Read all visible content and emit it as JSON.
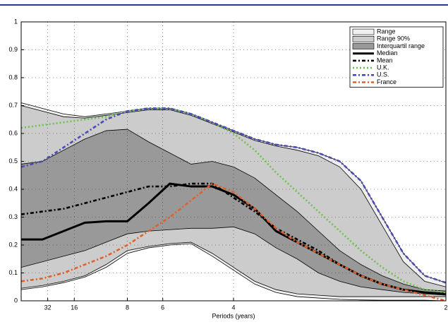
{
  "chart_data": {
    "type": "fan",
    "xlabel": "Periods (years)",
    "x": [
      0,
      0.025,
      0.05,
      0.075,
      0.1,
      0.125,
      0.15,
      0.175,
      0.2,
      0.225,
      0.25,
      0.275,
      0.3,
      0.325,
      0.35,
      0.375,
      0.4,
      0.425,
      0.45,
      0.475,
      0.5
    ],
    "xlim": [
      0,
      0.5
    ],
    "xticks": [
      {
        "value": 0.03125,
        "label": "32"
      },
      {
        "value": 0.0625,
        "label": "16"
      },
      {
        "value": 0.125,
        "label": "8"
      },
      {
        "value": 0.16667,
        "label": "6"
      },
      {
        "value": 0.25,
        "label": "4"
      },
      {
        "value": 0.5,
        "label": "2"
      }
    ],
    "ylim": [
      0,
      1
    ],
    "yticks": [
      0,
      0.1,
      0.2,
      0.3,
      0.4,
      0.5,
      0.6,
      0.7,
      0.8,
      0.9,
      1
    ],
    "grid": true,
    "legend": "upper right",
    "bands": [
      {
        "name": "Range",
        "color": "#efefef",
        "upper": [
          0.71,
          0.69,
          0.67,
          0.66,
          0.67,
          0.68,
          0.69,
          0.69,
          0.67,
          0.64,
          0.61,
          0.58,
          0.56,
          0.55,
          0.53,
          0.5,
          0.43,
          0.3,
          0.17,
          0.09,
          0.065
        ],
        "lower": [
          0.04,
          0.05,
          0.065,
          0.085,
          0.12,
          0.17,
          0.19,
          0.2,
          0.205,
          0.16,
          0.11,
          0.06,
          0.03,
          0.015,
          0.01,
          0.005,
          0.003,
          0.002,
          0.002,
          0.002,
          0
        ]
      },
      {
        "name": "Range 90%",
        "color": "#cccccc",
        "upper": [
          0.7,
          0.68,
          0.66,
          0.655,
          0.665,
          0.675,
          0.685,
          0.685,
          0.665,
          0.635,
          0.605,
          0.575,
          0.555,
          0.54,
          0.52,
          0.48,
          0.4,
          0.27,
          0.14,
          0.07,
          0.05
        ],
        "lower": [
          0.045,
          0.055,
          0.07,
          0.09,
          0.13,
          0.18,
          0.195,
          0.205,
          0.21,
          0.17,
          0.12,
          0.07,
          0.04,
          0.025,
          0.02,
          0.015,
          0.015,
          0.015,
          0.015,
          0.015,
          0.015
        ]
      },
      {
        "name": "Interquartil range",
        "color": "#999999",
        "upper": [
          0.49,
          0.5,
          0.54,
          0.58,
          0.61,
          0.615,
          0.57,
          0.53,
          0.49,
          0.5,
          0.48,
          0.44,
          0.38,
          0.32,
          0.25,
          0.18,
          0.13,
          0.09,
          0.06,
          0.04,
          0.035
        ],
        "lower": [
          0.12,
          0.14,
          0.16,
          0.18,
          0.21,
          0.24,
          0.25,
          0.255,
          0.26,
          0.26,
          0.265,
          0.24,
          0.19,
          0.15,
          0.1,
          0.07,
          0.05,
          0.04,
          0.03,
          0.025,
          0.02
        ]
      }
    ],
    "series": [
      {
        "name": "Median",
        "color": "#000000",
        "linestyle": "solid",
        "values": [
          0.22,
          0.22,
          0.25,
          0.28,
          0.285,
          0.285,
          0.35,
          0.42,
          0.41,
          0.41,
          0.38,
          0.33,
          0.25,
          0.21,
          0.17,
          0.13,
          0.09,
          0.06,
          0.04,
          0.03,
          0.025
        ]
      },
      {
        "name": "Mean",
        "color": "#000000",
        "linestyle": "dashdot",
        "values": [
          0.31,
          0.32,
          0.33,
          0.35,
          0.37,
          0.39,
          0.41,
          0.41,
          0.42,
          0.42,
          0.37,
          0.32,
          0.26,
          0.22,
          0.18,
          0.13,
          0.09,
          0.06,
          0.04,
          0.03,
          0.025
        ]
      },
      {
        "name": "U.K.",
        "color": "#6cc24a",
        "linestyle": "dotted",
        "values": [
          0.62,
          0.63,
          0.64,
          0.65,
          0.66,
          0.68,
          0.69,
          0.69,
          0.67,
          0.64,
          0.6,
          0.54,
          0.46,
          0.39,
          0.32,
          0.25,
          0.18,
          0.12,
          0.07,
          0.04,
          0.03
        ]
      },
      {
        "name": "U.S.",
        "color": "#4a4ab8",
        "linestyle": "dashdot",
        "values": [
          0.48,
          0.5,
          0.55,
          0.6,
          0.65,
          0.68,
          0.69,
          0.69,
          0.67,
          0.64,
          0.61,
          0.58,
          0.56,
          0.55,
          0.53,
          0.5,
          0.43,
          0.3,
          0.17,
          0.09,
          0.065
        ]
      },
      {
        "name": "France",
        "color": "#e0602a",
        "linestyle": "dashdot",
        "values": [
          0.07,
          0.08,
          0.1,
          0.13,
          0.16,
          0.2,
          0.25,
          0.3,
          0.36,
          0.42,
          0.39,
          0.33,
          0.26,
          0.21,
          0.17,
          0.13,
          0.09,
          0.06,
          0.04,
          0.02,
          0
        ]
      }
    ]
  }
}
